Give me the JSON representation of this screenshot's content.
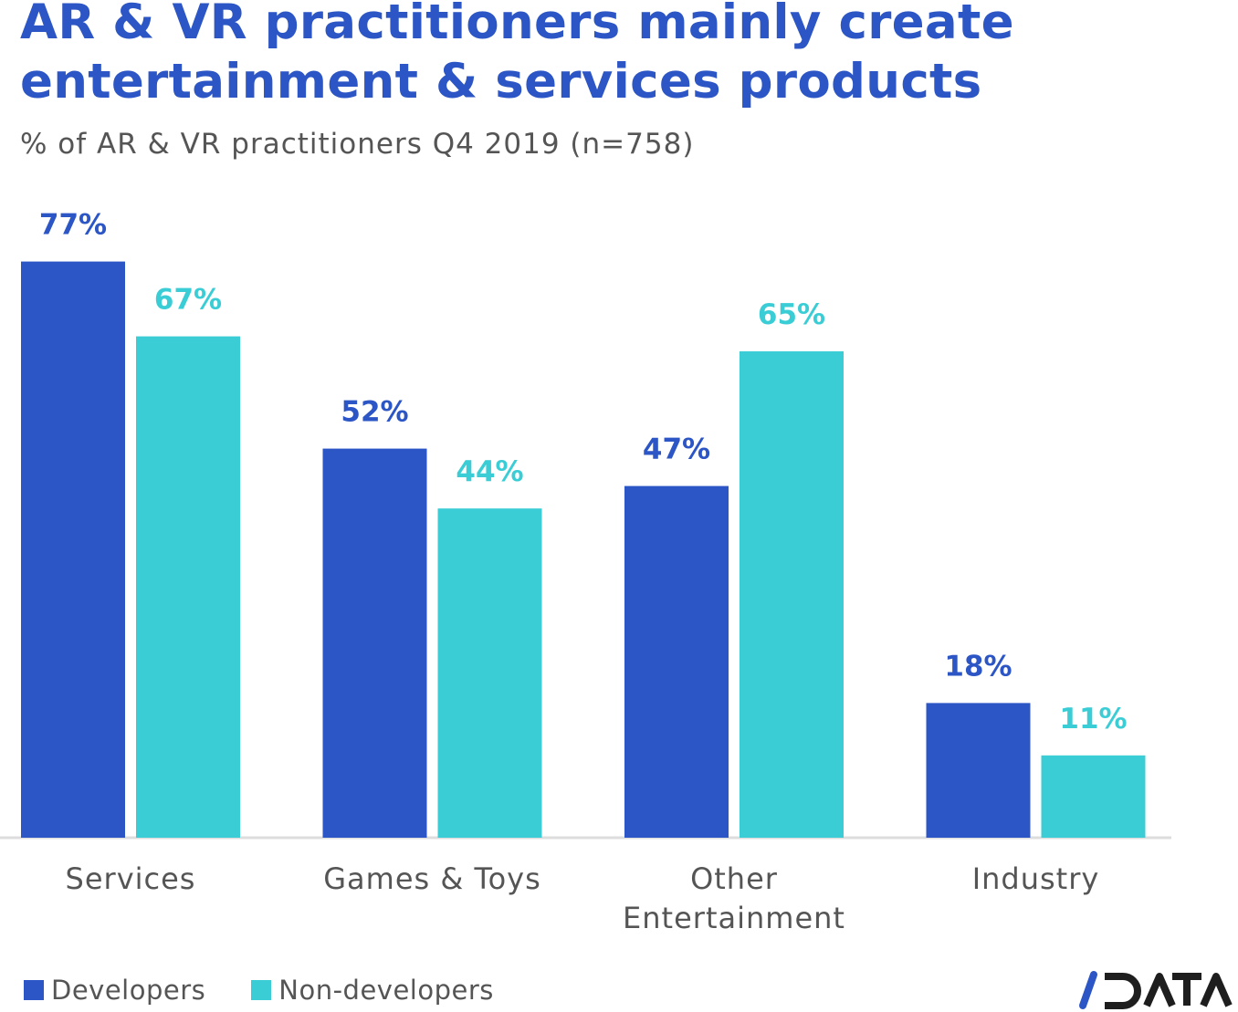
{
  "title": "AR & VR practitioners mainly create entertainment & services products",
  "title_lines": [
    "AR & VR practitioners mainly create",
    "entertainment & services products"
  ],
  "subtitle": "% of AR & VR practitioners Q4 2019 (n=758)",
  "logo_text": "/DATA",
  "colors": {
    "developers": "#2c55c5",
    "non_developers": "#3bcdd5",
    "title": "#2c55c5",
    "text": "#555555"
  },
  "chart_data": {
    "type": "bar",
    "title": "AR & VR practitioners mainly create entertainment & services products",
    "subtitle": "% of AR & VR practitioners Q4 2019 (n=758)",
    "categories": [
      [
        "Services"
      ],
      [
        "Games & Toys"
      ],
      [
        "Other",
        "Entertainment"
      ],
      [
        "Industry"
      ]
    ],
    "series": [
      {
        "name": "Developers",
        "values": [
          77,
          52,
          47,
          18
        ],
        "labels": [
          "77%",
          "52%",
          "47%",
          "18%"
        ],
        "color": "#2c55c5"
      },
      {
        "name": "Non-developers",
        "values": [
          67,
          44,
          65,
          11
        ],
        "labels": [
          "67%",
          "44%",
          "65%",
          "11%"
        ],
        "color": "#3bcdd5"
      }
    ],
    "xlabel": "",
    "ylabel": "",
    "ylim": [
      0,
      100
    ],
    "grid": false,
    "legend": "bottom-left"
  }
}
